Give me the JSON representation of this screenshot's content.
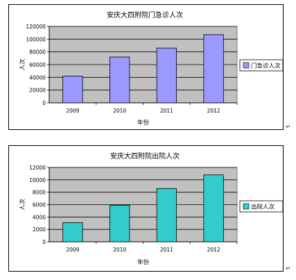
{
  "chart_data": [
    {
      "type": "bar",
      "title": "安庆大四附院门急诊人次",
      "xlabel": "年份",
      "ylabel": "人次",
      "categories": [
        "2009",
        "2010",
        "2011",
        "2012"
      ],
      "series": [
        {
          "name": "门急诊人次",
          "values": [
            42000,
            72000,
            86000,
            107000
          ]
        }
      ],
      "ylim": [
        0,
        120000
      ],
      "yticks": [
        0,
        20000,
        40000,
        60000,
        80000,
        100000,
        120000
      ],
      "grid": true,
      "legend": "right",
      "bar_color": "#9999ff",
      "plot_bg": "#c0c0c0"
    },
    {
      "type": "bar",
      "title": "安庆大四附院出院人次",
      "xlabel": "年份",
      "ylabel": "人次",
      "categories": [
        "2009",
        "2010",
        "2011",
        "2012"
      ],
      "series": [
        {
          "name": "出院人次",
          "values": [
            3100,
            5900,
            8600,
            10800
          ]
        }
      ],
      "ylim": [
        0,
        12000
      ],
      "yticks": [
        0,
        2000,
        4000,
        6000,
        8000,
        10000,
        12000
      ],
      "grid": true,
      "legend": "right",
      "bar_color": "#33cccc",
      "plot_bg": "#c0c0c0"
    }
  ],
  "para_mark": "↵"
}
